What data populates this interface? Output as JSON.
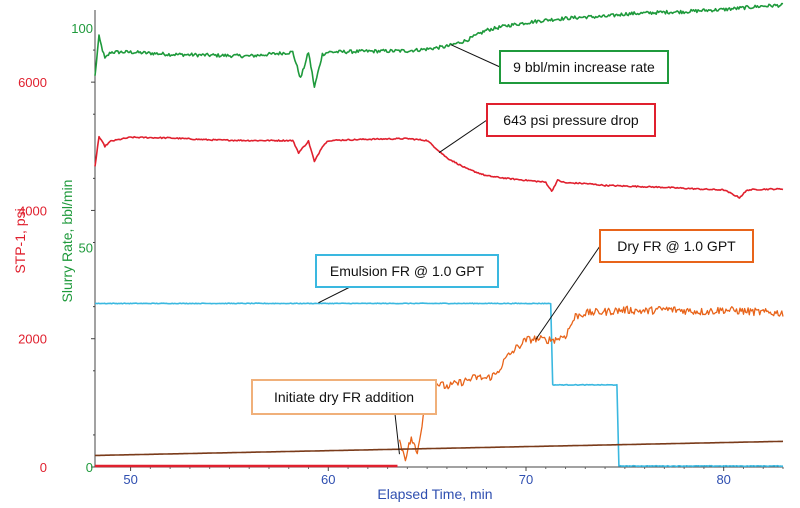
{
  "chart_data": {
    "type": "line",
    "title": "",
    "xlabel": "Elapsed Time, min",
    "ylabel_left": "STP-1, psi",
    "ylabel_right": "Slurry Rate, bbl/min",
    "xlim": [
      48.2,
      83
    ],
    "xticks": [
      50,
      60,
      70,
      80
    ],
    "ylim_pressure": [
      0,
      7000
    ],
    "yticks_pressure": [
      0,
      2000,
      4000,
      6000
    ],
    "ylim_rate": [
      0,
      100
    ],
    "yticks_rate": [
      0,
      50,
      100
    ],
    "colors": {
      "pressure": "#e0202e",
      "rate": "#1f9a3c",
      "emulsion": "#3ab8e0",
      "dry": "#e8641a",
      "baseline": "#7a3b1a",
      "axis_left": "#e0202e",
      "axis_right": "#1f9a3c",
      "axis_x": "#2f4fb0"
    },
    "series": [
      {
        "name": "Slurry Rate",
        "axis": "rate",
        "color_key": "rate",
        "x": [
          48.2,
          48.4,
          48.7,
          49.0,
          50.0,
          52.0,
          54.0,
          56.0,
          58.2,
          58.6,
          59.0,
          59.3,
          59.7,
          60.0,
          62.0,
          64.0,
          65.0,
          66.0,
          67.0,
          68.0,
          69.0,
          70.0,
          71.0,
          72.0,
          73.0,
          74.0,
          75.0,
          76.0,
          77.0,
          78.0,
          79.0,
          80.0,
          81.0,
          82.0,
          83.0
        ],
        "y": [
          89,
          98,
          93,
          94.5,
          94.5,
          94,
          93.8,
          93.6,
          94.5,
          88.5,
          94.5,
          86.5,
          94,
          94.5,
          94.7,
          94.8,
          95.2,
          95.8,
          97.2,
          99.5,
          100.5,
          101.2,
          101.8,
          102.2,
          102.5,
          102.6,
          103.2,
          103.4,
          103.6,
          103.7,
          104,
          104.2,
          104.6,
          105,
          105.2
        ],
        "noise": 0.4
      },
      {
        "name": "STP-1",
        "axis": "pressure",
        "color_key": "pressure",
        "x": [
          48.2,
          48.4,
          48.7,
          49.0,
          50.0,
          52.0,
          54.0,
          56.0,
          58.2,
          58.5,
          59.0,
          59.3,
          59.7,
          60.0,
          62.0,
          64.0,
          65.0,
          66.0,
          67.0,
          68.0,
          69.0,
          70.0,
          71.0,
          71.3,
          71.6,
          72.0,
          73.0,
          74.0,
          75.0,
          76.0,
          77.0,
          78.0,
          79.0,
          80.0,
          80.8,
          81.2,
          82.0,
          83.0
        ],
        "y": [
          4680,
          5150,
          5000,
          5080,
          5140,
          5130,
          5100,
          5090,
          5090,
          4900,
          5080,
          4760,
          5000,
          5090,
          5110,
          5120,
          5090,
          4820,
          4650,
          4540,
          4500,
          4470,
          4440,
          4300,
          4470,
          4430,
          4420,
          4390,
          4380,
          4370,
          4360,
          4345,
          4330,
          4320,
          4200,
          4320,
          4330,
          4335
        ],
        "noise": 10
      },
      {
        "name": "Emulsion FR",
        "axis": "pressure",
        "color_key": "emulsion",
        "x": [
          48.2,
          71.25,
          71.35,
          74.6,
          74.7,
          83.0
        ],
        "y": [
          2550,
          2550,
          1280,
          1280,
          15,
          15
        ],
        "noise": 5
      },
      {
        "name": "Dry FR",
        "axis": "pressure",
        "color_key": "dry",
        "x": [
          63.6,
          63.9,
          64.2,
          64.5,
          64.8,
          65.0,
          65.5,
          66.0,
          66.5,
          67.0,
          67.5,
          68.0,
          68.5,
          69.0,
          69.5,
          70.0,
          70.5,
          71.0,
          71.5,
          72.0,
          72.5,
          73.0,
          74.0,
          75.0,
          76.0,
          77.0,
          78.0,
          79.0,
          80.0,
          81.0,
          82.0,
          83.0
        ],
        "y": [
          400,
          150,
          450,
          200,
          800,
          1200,
          1300,
          1250,
          1300,
          1350,
          1400,
          1380,
          1450,
          1700,
          1850,
          1980,
          2000,
          1980,
          1990,
          2050,
          2350,
          2400,
          2420,
          2450,
          2430,
          2460,
          2440,
          2420,
          2450,
          2430,
          2410,
          2400
        ],
        "noise": 60
      },
      {
        "name": "Baseline",
        "axis": "pressure",
        "color_key": "baseline",
        "x": [
          48.2,
          83.0
        ],
        "y": [
          180,
          400
        ],
        "noise": 0
      }
    ],
    "annotations": [
      {
        "text": "9 bbl/min increase rate",
        "target_x": 66.2,
        "target_y_rate": 96.2,
        "color": "#1f9a3c"
      },
      {
        "text": "643 psi pressure drop",
        "target_x": 65.6,
        "target_y_pressure": 4900,
        "color": "#e0202e"
      },
      {
        "text": "Emulsion FR @ 1.0 GPT",
        "target_x": 59.5,
        "target_y_pressure": 2560,
        "color": "#3ab8e0"
      },
      {
        "text": "Dry FR @ 1.0 GPT",
        "target_x": 70.5,
        "target_y_pressure": 1990,
        "color": "#e8641a"
      },
      {
        "text": "Initiate dry FR addition",
        "target_x": 63.6,
        "target_y_pressure": 200,
        "color": "#f0b07a"
      }
    ]
  }
}
